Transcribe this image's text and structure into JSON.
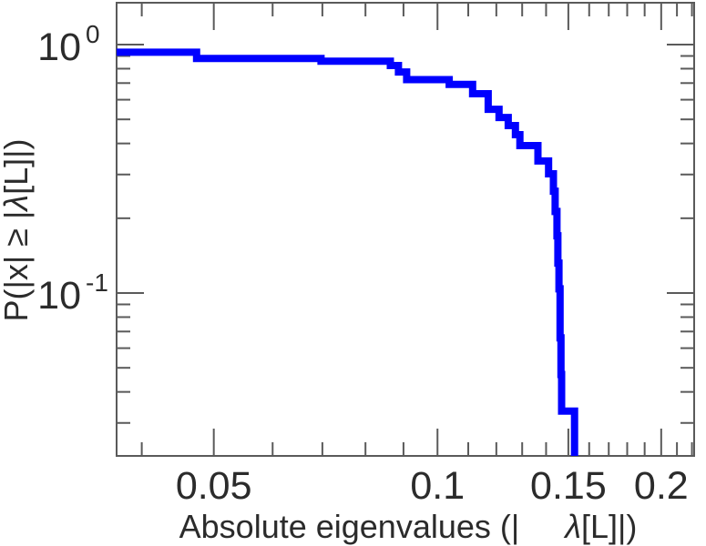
{
  "chart_data": {
    "type": "line",
    "subtype": "step-ccdf",
    "title": "",
    "xlabel_parts": [
      {
        "text": "Absolute eigenvalues (|",
        "italic": false
      },
      {
        "text": "     ",
        "italic": false
      },
      {
        "text": "λ",
        "italic": true
      },
      {
        "text": "[L]|)",
        "italic": false
      }
    ],
    "ylabel_parts": [
      {
        "text": "P(|x| ≥ |",
        "italic": false
      },
      {
        "text": "λ",
        "italic": true
      },
      {
        "text": "[L]|)",
        "italic": false
      }
    ],
    "xscale": "log",
    "yscale": "log",
    "xlim": [
      0.037,
      0.2215
    ],
    "ylim": [
      0.0221,
      1.474
    ],
    "grid": false,
    "frame": "box",
    "legend": "none",
    "x_major_ticks": [
      {
        "value": 0.05,
        "label": "0.05"
      },
      {
        "value": 0.1,
        "label": "0.1"
      },
      {
        "value": 0.15,
        "label": "0.15"
      },
      {
        "value": 0.2,
        "label": "0.2"
      }
    ],
    "x_minor_ticks": [
      0.04,
      0.06,
      0.07,
      0.08,
      0.09,
      0.11,
      0.12,
      0.13,
      0.14,
      0.16,
      0.17,
      0.18,
      0.19,
      0.21,
      0.22
    ],
    "y_major_ticks": [
      {
        "value": 1,
        "base": "10",
        "exponent": "0"
      },
      {
        "value": 0.1,
        "base": "10",
        "exponent": "-1"
      }
    ],
    "y_minor_ticks": [
      0.9,
      0.8,
      0.7,
      0.6,
      0.5,
      0.4,
      0.3,
      0.2,
      0.09,
      0.08,
      0.07,
      0.06,
      0.05,
      0.04,
      0.03
    ],
    "series": [
      {
        "name": "absolute-eigenvalue-ccdf",
        "color": "#0000ff",
        "line_width": 8,
        "step": "post",
        "points": [
          [
            0.037,
            0.932
          ],
          [
            0.0474,
            0.879
          ],
          [
            0.0697,
            0.858
          ],
          [
            0.0864,
            0.824
          ],
          [
            0.0886,
            0.776
          ],
          [
            0.0909,
            0.723
          ],
          [
            0.1037,
            0.692
          ],
          [
            0.1115,
            0.634
          ],
          [
            0.117,
            0.549
          ],
          [
            0.121,
            0.509
          ],
          [
            0.1245,
            0.472
          ],
          [
            0.1273,
            0.434
          ],
          [
            0.1291,
            0.392
          ],
          [
            0.1365,
            0.34
          ],
          [
            0.1411,
            0.302
          ],
          [
            0.1432,
            0.257
          ],
          [
            0.144,
            0.213
          ],
          [
            0.1448,
            0.17
          ],
          [
            0.1452,
            0.132
          ],
          [
            0.1457,
            0.104
          ],
          [
            0.1462,
            0.066
          ],
          [
            0.1466,
            0.047
          ],
          [
            0.1469,
            0.0335
          ],
          [
            0.1529,
            0.0221
          ]
        ]
      }
    ],
    "colors": {
      "curve": "#0000ff",
      "axis": "#5a5a5a",
      "text": "#2b2b2b",
      "background": "#ffffff"
    }
  }
}
